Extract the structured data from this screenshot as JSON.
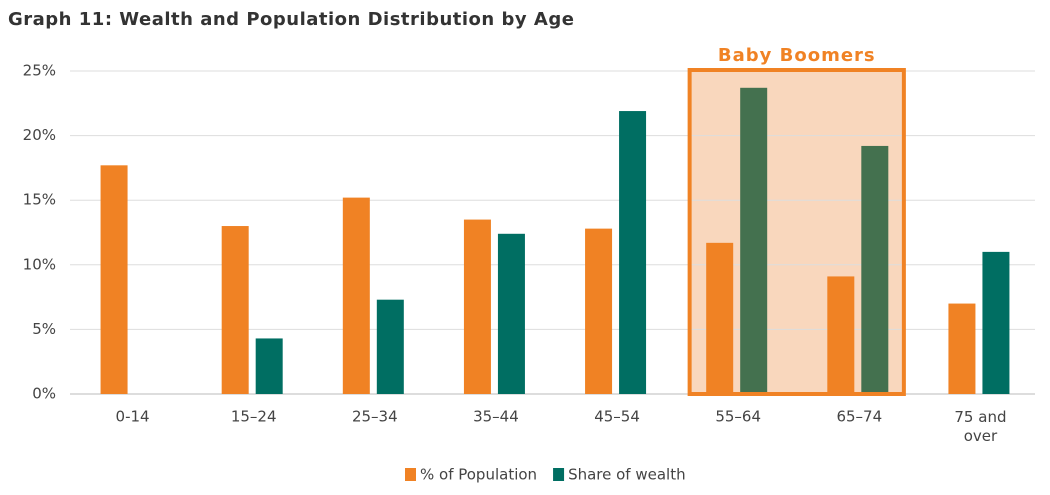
{
  "chart_data": {
    "type": "bar",
    "title": "Graph 11: Wealth and Population Distribution by Age",
    "categories": [
      "0-14",
      "15–24",
      "25–34",
      "35–44",
      "45–54",
      "55–64",
      "65–74",
      "75 and over"
    ],
    "series": [
      {
        "name": "% of Population",
        "color": "#f08224",
        "values": [
          17.7,
          13.0,
          15.2,
          13.5,
          12.8,
          11.7,
          9.1,
          7.0
        ]
      },
      {
        "name": "Share of wealth",
        "color": "#006e62",
        "highlight_color": "#44714f",
        "values": [
          null,
          4.3,
          7.3,
          12.4,
          21.9,
          23.7,
          19.2,
          11.0
        ]
      }
    ],
    "highlight": {
      "label": "Baby Boomers",
      "categories": [
        "55–64",
        "65–74"
      ],
      "color": "#f08224",
      "fill": "#f9d7bd"
    },
    "ylim": [
      0,
      25
    ],
    "yticks": [
      {
        "value": 0,
        "label": "0%"
      },
      {
        "value": 5,
        "label": "5%"
      },
      {
        "value": 10,
        "label": "10%"
      },
      {
        "value": 15,
        "label": "15%"
      },
      {
        "value": 20,
        "label": "20%"
      },
      {
        "value": 25,
        "label": "25%"
      }
    ],
    "grid": true,
    "legend": "bottom"
  }
}
